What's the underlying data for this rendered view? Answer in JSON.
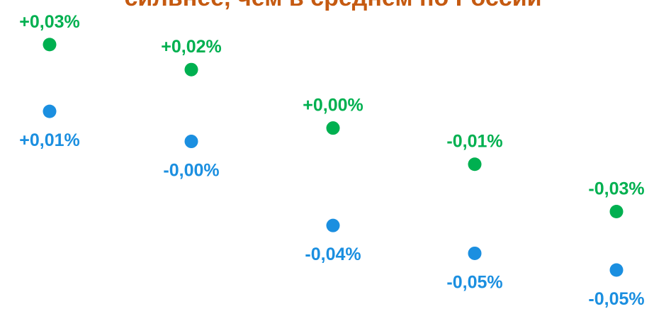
{
  "chart_data": {
    "type": "dot",
    "title": "сильнее, чем в среднем по России",
    "categories": [
      null,
      null,
      null,
      null,
      null
    ],
    "series": [
      {
        "name": null,
        "color": "#00b050",
        "values": [
          0.03,
          0.021,
          0.0,
          -0.013,
          -0.03
        ],
        "value_labels": [
          "+0,03%",
          "+0,02%",
          "+0,00%",
          "-0,01%",
          "-0,03%"
        ],
        "label_position": "above"
      },
      {
        "name": null,
        "color": "#1b8fe0",
        "values": [
          0.006,
          -0.0048,
          -0.035,
          -0.045,
          -0.051
        ],
        "value_labels": [
          "+0,01%",
          "-0,00%",
          "-0,04%",
          "-0,05%",
          "-0,05%"
        ],
        "label_position": "below"
      }
    ],
    "ylim": [
      -0.065,
      0.046
    ]
  }
}
